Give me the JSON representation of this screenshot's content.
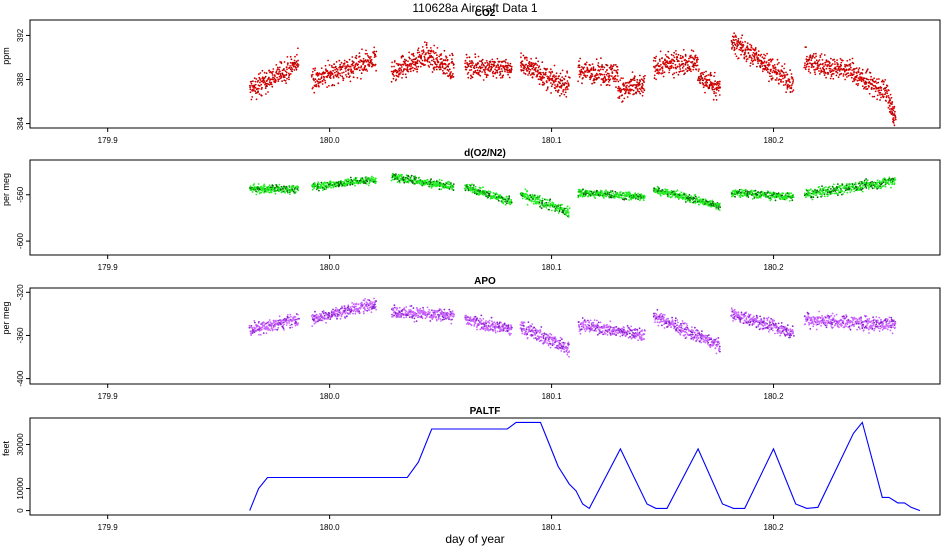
{
  "figure": {
    "title": "110628a   Aircraft Data 1",
    "xlabel": "day of year"
  },
  "chart_data": [
    {
      "type": "scatter",
      "title": "CO2",
      "ylabel": "ppm",
      "color": "#dd0000",
      "point_color": "#aa0000",
      "xlim": [
        179.865,
        180.275
      ],
      "ylim": [
        383.6,
        393.4
      ],
      "x_ticks": [
        179.9,
        180.0,
        180.1,
        180.2
      ],
      "x_tick_labels": [
        "179.9",
        "180.0",
        "180.1",
        "180.2"
      ],
      "y_ticks": [
        384,
        388,
        392
      ],
      "y_tick_labels": [
        "384",
        "388",
        "392"
      ],
      "segments": [
        {
          "x": [
            179.964,
            179.986
          ],
          "y": [
            387.0,
            389.5
          ],
          "noise": 0.9
        },
        {
          "x": [
            179.992,
            180.021
          ],
          "y": [
            388.0,
            389.8
          ],
          "noise": 0.9
        },
        {
          "x": [
            180.028,
            180.044
          ],
          "y": [
            388.4,
            390.4
          ],
          "noise": 0.9
        },
        {
          "x": [
            180.044,
            180.056
          ],
          "y": [
            390.0,
            389.0
          ],
          "noise": 0.9
        },
        {
          "x": [
            180.061,
            180.082
          ],
          "y": [
            389.2,
            389.0
          ],
          "noise": 0.8
        },
        {
          "x": [
            180.086,
            180.096
          ],
          "y": [
            389.5,
            388.5
          ],
          "noise": 0.9
        },
        {
          "x": [
            180.096,
            180.108
          ],
          "y": [
            388.2,
            387.4
          ],
          "noise": 0.9
        },
        {
          "x": [
            180.112,
            180.13
          ],
          "y": [
            388.8,
            388.5
          ],
          "noise": 0.9
        },
        {
          "x": [
            180.13,
            180.142
          ],
          "y": [
            387.0,
            387.4
          ],
          "noise": 0.9
        },
        {
          "x": [
            180.146,
            180.166
          ],
          "y": [
            389.2,
            389.6
          ],
          "noise": 0.9
        },
        {
          "x": [
            180.166,
            180.176
          ],
          "y": [
            388.2,
            387.2
          ],
          "noise": 0.9
        },
        {
          "x": [
            180.181,
            180.196
          ],
          "y": [
            391.4,
            389.6
          ],
          "noise": 0.9
        },
        {
          "x": [
            180.196,
            180.209
          ],
          "y": [
            389.4,
            387.6
          ],
          "noise": 0.9
        },
        {
          "x": [
            180.214,
            180.236
          ],
          "y": [
            389.6,
            388.8
          ],
          "noise": 0.9
        },
        {
          "x": [
            180.236,
            180.252
          ],
          "y": [
            388.6,
            386.6
          ],
          "noise": 0.9
        },
        {
          "x": [
            180.252,
            180.255
          ],
          "y": [
            386.0,
            384.4
          ],
          "noise": 0.9
        }
      ]
    },
    {
      "type": "scatter",
      "title": "d(O2/N2)",
      "ylabel": "per meg",
      "color": "#22ee22",
      "point_color": "#006600",
      "xlim": [
        179.865,
        180.275
      ],
      "ylim": [
        -612,
        -530
      ],
      "x_ticks": [
        179.9,
        180.0,
        180.1,
        180.2
      ],
      "x_tick_labels": [
        "179.9",
        "180.0",
        "180.1",
        "180.2"
      ],
      "y_ticks": [
        -560,
        -600
      ],
      "y_tick_labels": [
        "-560",
        "-600"
      ],
      "segments": [
        {
          "x": [
            179.964,
            179.986
          ],
          "y": [
            -555,
            -555
          ],
          "noise": 3
        },
        {
          "x": [
            179.992,
            180.021
          ],
          "y": [
            -553,
            -547
          ],
          "noise": 3
        },
        {
          "x": [
            180.028,
            180.056
          ],
          "y": [
            -545,
            -553
          ],
          "noise": 3
        },
        {
          "x": [
            180.061,
            180.082
          ],
          "y": [
            -553,
            -566
          ],
          "noise": 3
        },
        {
          "x": [
            180.086,
            180.108
          ],
          "y": [
            -560,
            -575
          ],
          "noise": 4
        },
        {
          "x": [
            180.112,
            180.142
          ],
          "y": [
            -558,
            -562
          ],
          "noise": 3
        },
        {
          "x": [
            180.146,
            180.176
          ],
          "y": [
            -555,
            -570
          ],
          "noise": 3
        },
        {
          "x": [
            180.181,
            180.209
          ],
          "y": [
            -558,
            -562
          ],
          "noise": 3
        },
        {
          "x": [
            180.214,
            180.255
          ],
          "y": [
            -560,
            -548
          ],
          "noise": 4
        }
      ]
    },
    {
      "type": "scatter",
      "title": "APO",
      "ylabel": "per meg",
      "color": "#cc66ff",
      "point_color": "#8822cc",
      "xlim": [
        179.865,
        180.275
      ],
      "ylim": [
        -405,
        -316
      ],
      "x_ticks": [
        179.9,
        180.0,
        180.1,
        180.2
      ],
      "x_tick_labels": [
        "179.9",
        "180.0",
        "180.1",
        "180.2"
      ],
      "y_ticks": [
        -320,
        -360,
        -400
      ],
      "y_tick_labels": [
        "-320",
        "-360",
        "-400"
      ],
      "segments": [
        {
          "x": [
            179.964,
            179.986
          ],
          "y": [
            -355,
            -345
          ],
          "noise": 5
        },
        {
          "x": [
            179.992,
            180.021
          ],
          "y": [
            -345,
            -330
          ],
          "noise": 5
        },
        {
          "x": [
            180.028,
            180.056
          ],
          "y": [
            -338,
            -342
          ],
          "noise": 5
        },
        {
          "x": [
            180.061,
            180.082
          ],
          "y": [
            -345,
            -355
          ],
          "noise": 5
        },
        {
          "x": [
            180.086,
            180.108
          ],
          "y": [
            -352,
            -372
          ],
          "noise": 6
        },
        {
          "x": [
            180.112,
            180.142
          ],
          "y": [
            -350,
            -360
          ],
          "noise": 5
        },
        {
          "x": [
            180.146,
            180.176
          ],
          "y": [
            -342,
            -370
          ],
          "noise": 5
        },
        {
          "x": [
            180.181,
            180.209
          ],
          "y": [
            -340,
            -358
          ],
          "noise": 5
        },
        {
          "x": [
            180.214,
            180.255
          ],
          "y": [
            -345,
            -350
          ],
          "noise": 6
        }
      ]
    },
    {
      "type": "line",
      "title": "PALTF",
      "ylabel": "feet",
      "color": "#0000ff",
      "xlim": [
        179.865,
        180.275
      ],
      "ylim": [
        -2000,
        42000
      ],
      "x_ticks": [
        179.9,
        180.0,
        180.1,
        180.2
      ],
      "x_tick_labels": [
        "179.9",
        "180.0",
        "180.1",
        "180.2"
      ],
      "y_ticks": [
        0,
        10000,
        30000
      ],
      "y_tick_labels": [
        "0",
        "10000",
        "30000"
      ],
      "x": [
        179.964,
        179.968,
        179.972,
        180.035,
        180.04,
        180.046,
        180.08,
        180.084,
        180.095,
        180.099,
        180.103,
        180.108,
        180.111,
        180.114,
        180.117,
        180.131,
        180.143,
        180.147,
        180.152,
        180.166,
        180.177,
        180.182,
        180.187,
        180.2,
        180.21,
        180.215,
        180.22,
        180.236,
        180.24,
        180.249,
        180.252,
        180.256,
        180.259,
        180.262,
        180.266
      ],
      "y": [
        0,
        10000,
        15000,
        15000,
        22000,
        37000,
        37000,
        40000,
        40000,
        30000,
        20000,
        12000,
        9000,
        3000,
        1000,
        28000,
        3000,
        1000,
        1000,
        28000,
        3000,
        1000,
        1000,
        28000,
        3000,
        1000,
        1500,
        35000,
        40000,
        6000,
        6000,
        3500,
        3500,
        1500,
        0
      ]
    }
  ]
}
